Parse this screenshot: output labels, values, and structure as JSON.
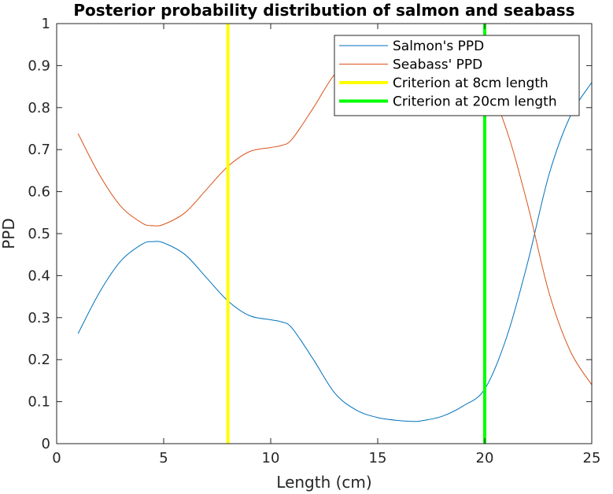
{
  "chart_data": {
    "type": "line",
    "title": "Posterior probability distribution of salmon and seabass",
    "xlabel": "Length (cm)",
    "ylabel": "PPD",
    "xlim": [
      0,
      25
    ],
    "ylim": [
      0,
      1
    ],
    "xticks": [
      0,
      5,
      10,
      15,
      20,
      25
    ],
    "yticks": [
      0,
      0.1,
      0.2,
      0.3,
      0.4,
      0.5,
      0.6,
      0.7,
      0.8,
      0.9,
      1
    ],
    "grid": false,
    "legend_position": "top-right",
    "series": [
      {
        "name": "Salmon's PPD",
        "color": "#0072BD",
        "x": [
          1,
          2,
          3,
          4,
          4.5,
          5,
          6,
          7,
          8,
          9,
          10,
          10.5,
          11,
          12,
          13,
          14,
          15,
          16,
          16.7,
          17,
          18,
          19,
          20,
          21,
          22,
          23,
          24,
          25
        ],
        "values": [
          0.262,
          0.36,
          0.435,
          0.475,
          0.481,
          0.478,
          0.45,
          0.395,
          0.34,
          0.305,
          0.295,
          0.29,
          0.275,
          0.2,
          0.12,
          0.08,
          0.062,
          0.055,
          0.053,
          0.054,
          0.065,
          0.09,
          0.13,
          0.25,
          0.43,
          0.64,
          0.78,
          0.86
        ]
      },
      {
        "name": "Seabass' PPD",
        "color": "#D95319",
        "x": [
          1,
          2,
          3,
          4,
          4.5,
          5,
          6,
          7,
          8,
          9,
          10,
          10.5,
          11,
          12,
          13,
          14,
          15,
          16,
          16.7,
          17,
          18,
          19,
          20,
          21,
          22,
          23,
          24,
          25
        ],
        "values": [
          0.738,
          0.64,
          0.565,
          0.525,
          0.519,
          0.522,
          0.55,
          0.605,
          0.66,
          0.695,
          0.705,
          0.71,
          0.725,
          0.8,
          0.88,
          0.92,
          0.938,
          0.945,
          0.947,
          0.946,
          0.935,
          0.91,
          0.87,
          0.75,
          0.57,
          0.36,
          0.22,
          0.14
        ]
      }
    ],
    "vlines": [
      {
        "name": "Criterion at 8cm length",
        "x": 8,
        "color": "#FFFF00"
      },
      {
        "name": "Criterion at 20cm length",
        "x": 20,
        "color": "#00FF00"
      }
    ]
  }
}
